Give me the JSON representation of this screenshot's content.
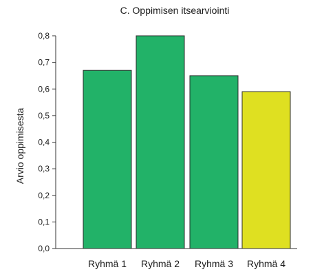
{
  "chart_data": {
    "type": "bar",
    "title": "C. Oppimisen itsearviointi",
    "xlabel": "",
    "ylabel": "Arvio oppimisesta",
    "categories": [
      "Ryhmä 1",
      "Ryhmä 2",
      "Ryhmä 3",
      "Ryhmä 4"
    ],
    "values": [
      0.67,
      0.8,
      0.65,
      0.59
    ],
    "colors": [
      "#22b268",
      "#22b268",
      "#22b268",
      "#dfe021"
    ],
    "ylim": [
      0,
      0.8
    ],
    "yticks": [
      "0,0",
      "0,1",
      "0,2",
      "0,3",
      "0,4",
      "0,5",
      "0,6",
      "0,7",
      "0,8"
    ],
    "grid": false,
    "legend": "none"
  }
}
